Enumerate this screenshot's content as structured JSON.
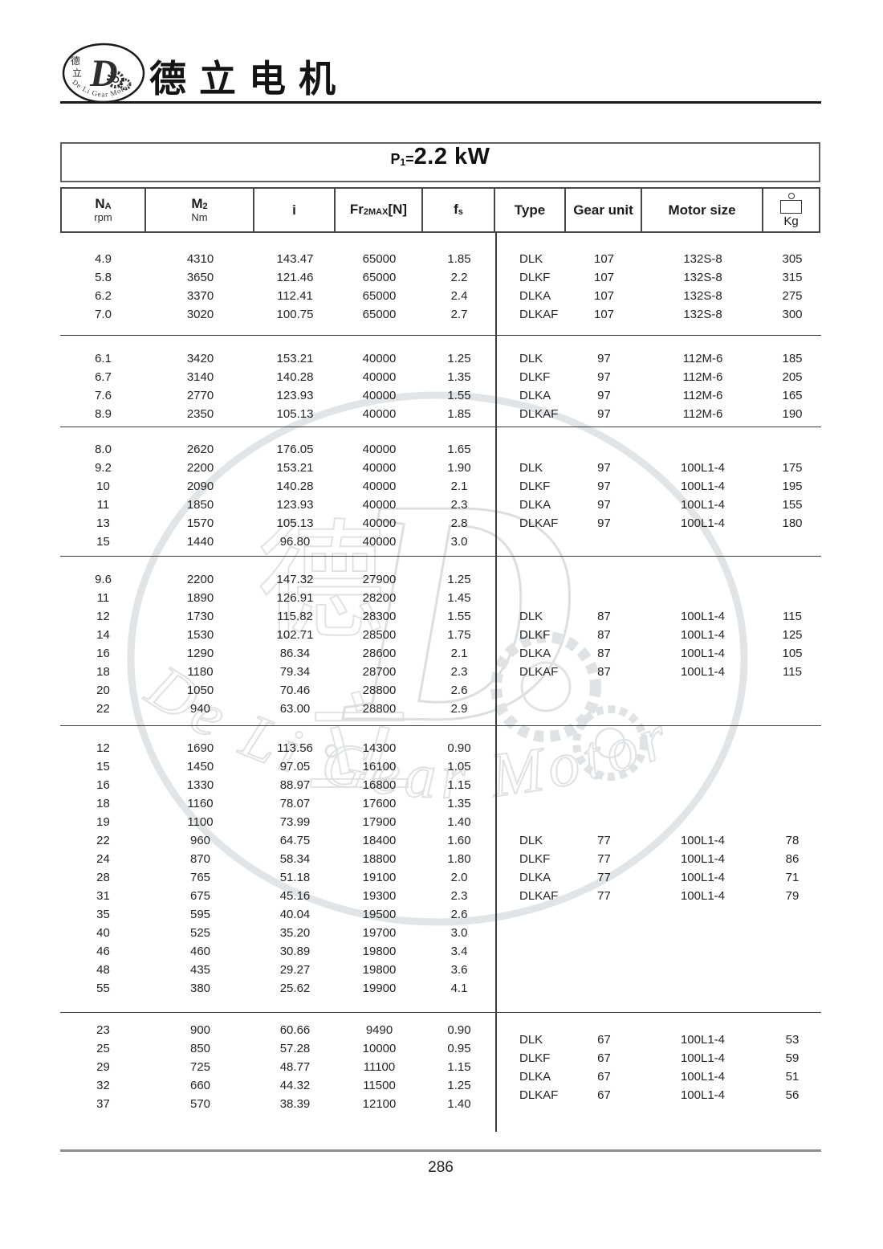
{
  "brand": {
    "company_name": "德立电机",
    "logo": {
      "cn_char_top": "德",
      "cn_char_bottom": "立",
      "letter": "D",
      "arc_text": "De Li Gear Motor"
    }
  },
  "title": {
    "p_base": "P",
    "p_sub": "1",
    "eq": "=",
    "value": "2.2 kW"
  },
  "header": {
    "na": {
      "base": "N",
      "sub": "A",
      "unit": "rpm"
    },
    "m2": {
      "base": "M",
      "sub": "2",
      "unit": "Nm"
    },
    "i": {
      "base": "i"
    },
    "fr": {
      "base": "Fr",
      "sub": "2MAX",
      "suffix": "[N]"
    },
    "fs": {
      "base": "f",
      "sub": "s"
    },
    "type": "Type",
    "gear_unit": "Gear unit",
    "motor_size": "Motor size",
    "kg": "Kg",
    "kg_icon": "weight-icon"
  },
  "watermark": {
    "cn_char_top": "德",
    "cn_char_bottom": "立",
    "letter": "D",
    "arc_text": "De Li Gear Motor"
  },
  "footer": {
    "page_number": "286"
  },
  "columns_order": [
    "NA rpm",
    "M2 Nm",
    "i",
    "Fr2MAX[N]",
    "fs",
    "Type",
    "Gear unit",
    "Motor size",
    "Kg"
  ],
  "blocks": [
    {
      "rows": [
        [
          "4.9",
          "4310",
          "143.47",
          "65000",
          "1.85"
        ],
        [
          "5.8",
          "3650",
          "121.46",
          "65000",
          "2.2"
        ],
        [
          "6.2",
          "3370",
          "112.41",
          "65000",
          "2.4"
        ],
        [
          "7.0",
          "3020",
          "100.75",
          "65000",
          "2.7"
        ]
      ],
      "models": [
        [
          "DLK",
          "107",
          "132S-8",
          "305"
        ],
        [
          "DLKF",
          "107",
          "132S-8",
          "315"
        ],
        [
          "DLKA",
          "107",
          "132S-8",
          "275"
        ],
        [
          "DLKAF",
          "107",
          "132S-8",
          "300"
        ]
      ]
    },
    {
      "rows": [
        [
          "6.1",
          "3420",
          "153.21",
          "40000",
          "1.25"
        ],
        [
          "6.7",
          "3140",
          "140.28",
          "40000",
          "1.35"
        ],
        [
          "7.6",
          "2770",
          "123.93",
          "40000",
          "1.55"
        ],
        [
          "8.9",
          "2350",
          "105.13",
          "40000",
          "1.85"
        ]
      ],
      "models": [
        [
          "DLK",
          "97",
          "112M-6",
          "185"
        ],
        [
          "DLKF",
          "97",
          "112M-6",
          "205"
        ],
        [
          "DLKA",
          "97",
          "112M-6",
          "165"
        ],
        [
          "DLKAF",
          "97",
          "112M-6",
          "190"
        ]
      ]
    },
    {
      "rows": [
        [
          "8.0",
          "2620",
          "176.05",
          "40000",
          "1.65"
        ],
        [
          "9.2",
          "2200",
          "153.21",
          "40000",
          "1.90"
        ],
        [
          "10",
          "2090",
          "140.28",
          "40000",
          "2.1"
        ],
        [
          "11",
          "1850",
          "123.93",
          "40000",
          "2.3"
        ],
        [
          "13",
          "1570",
          "105.13",
          "40000",
          "2.8"
        ],
        [
          "15",
          "1440",
          "96.80",
          "40000",
          "3.0"
        ]
      ],
      "models": [
        [
          "DLK",
          "97",
          "100L1-4",
          "175"
        ],
        [
          "DLKF",
          "97",
          "100L1-4",
          "195"
        ],
        [
          "DLKA",
          "97",
          "100L1-4",
          "155"
        ],
        [
          "DLKAF",
          "97",
          "100L1-4",
          "180"
        ]
      ]
    },
    {
      "rows": [
        [
          "9.6",
          "2200",
          "147.32",
          "27900",
          "1.25"
        ],
        [
          "11",
          "1890",
          "126.91",
          "28200",
          "1.45"
        ],
        [
          "12",
          "1730",
          "115.82",
          "28300",
          "1.55"
        ],
        [
          "14",
          "1530",
          "102.71",
          "28500",
          "1.75"
        ],
        [
          "16",
          "1290",
          "86.34",
          "28600",
          "2.1"
        ],
        [
          "18",
          "1180",
          "79.34",
          "28700",
          "2.3"
        ],
        [
          "20",
          "1050",
          "70.46",
          "28800",
          "2.6"
        ],
        [
          "22",
          "940",
          "63.00",
          "28800",
          "2.9"
        ]
      ],
      "models": [
        [
          "DLK",
          "87",
          "100L1-4",
          "115"
        ],
        [
          "DLKF",
          "87",
          "100L1-4",
          "125"
        ],
        [
          "DLKA",
          "87",
          "100L1-4",
          "105"
        ],
        [
          "DLKAF",
          "87",
          "100L1-4",
          "115"
        ]
      ]
    },
    {
      "rows": [
        [
          "12",
          "1690",
          "113.56",
          "14300",
          "0.90"
        ],
        [
          "15",
          "1450",
          "97.05",
          "16100",
          "1.05"
        ],
        [
          "16",
          "1330",
          "88.97",
          "16800",
          "1.15"
        ],
        [
          "18",
          "1160",
          "78.07",
          "17600",
          "1.35"
        ],
        [
          "19",
          "1100",
          "73.99",
          "17900",
          "1.40"
        ],
        [
          "22",
          "960",
          "64.75",
          "18400",
          "1.60"
        ],
        [
          "24",
          "870",
          "58.34",
          "18800",
          "1.80"
        ],
        [
          "28",
          "765",
          "51.18",
          "19100",
          "2.0"
        ],
        [
          "31",
          "675",
          "45.16",
          "19300",
          "2.3"
        ],
        [
          "35",
          "595",
          "40.04",
          "19500",
          "2.6"
        ],
        [
          "40",
          "525",
          "35.20",
          "19700",
          "3.0"
        ],
        [
          "46",
          "460",
          "30.89",
          "19800",
          "3.4"
        ],
        [
          "48",
          "435",
          "29.27",
          "19800",
          "3.6"
        ],
        [
          "55",
          "380",
          "25.62",
          "19900",
          "4.1"
        ]
      ],
      "models": [
        [
          "DLK",
          "77",
          "100L1-4",
          "78"
        ],
        [
          "DLKF",
          "77",
          "100L1-4",
          "86"
        ],
        [
          "DLKA",
          "77",
          "100L1-4",
          "71"
        ],
        [
          "DLKAF",
          "77",
          "100L1-4",
          "79"
        ]
      ]
    },
    {
      "rows": [
        [
          "23",
          "900",
          "60.66",
          "9490",
          "0.90"
        ],
        [
          "25",
          "850",
          "57.28",
          "10000",
          "0.95"
        ],
        [
          "29",
          "725",
          "48.77",
          "11100",
          "1.15"
        ],
        [
          "32",
          "660",
          "44.32",
          "11500",
          "1.25"
        ],
        [
          "37",
          "570",
          "38.39",
          "12100",
          "1.40"
        ]
      ],
      "models": [
        [
          "DLK",
          "67",
          "100L1-4",
          "53"
        ],
        [
          "DLKF",
          "67",
          "100L1-4",
          "59"
        ],
        [
          "DLKA",
          "67",
          "100L1-4",
          "51"
        ],
        [
          "DLKAF",
          "67",
          "100L1-4",
          "56"
        ]
      ]
    }
  ]
}
